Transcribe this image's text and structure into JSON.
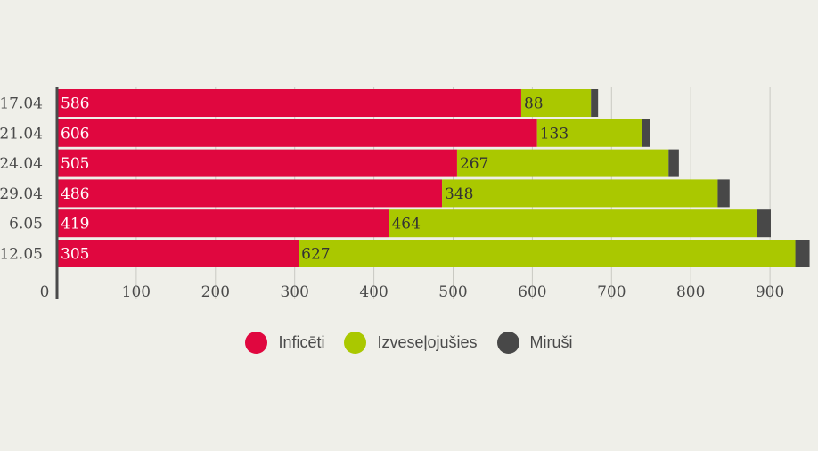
{
  "chart_data": {
    "type": "bar",
    "orientation": "horizontal",
    "stacked": true,
    "categories": [
      "17.04",
      "21.04",
      "24.04",
      "29.04",
      "6.05",
      "12.05"
    ],
    "series": [
      {
        "name": "Inficēti",
        "color": "#e0073f",
        "values": [
          586,
          606,
          505,
          486,
          419,
          305
        ]
      },
      {
        "name": "Izveseļojušies",
        "color": "#aac800",
        "values": [
          88,
          133,
          267,
          348,
          464,
          627
        ]
      },
      {
        "name": "Miruši",
        "color": "#484848",
        "values": [
          9,
          10,
          13,
          15,
          18,
          18
        ]
      }
    ],
    "x_ticks": [
      0,
      100,
      200,
      300,
      400,
      500,
      600,
      700,
      800,
      900
    ],
    "xlim": [
      0,
      950
    ],
    "grid": true,
    "legend_position": "bottom-center",
    "title": "",
    "xlabel": "",
    "ylabel": ""
  }
}
